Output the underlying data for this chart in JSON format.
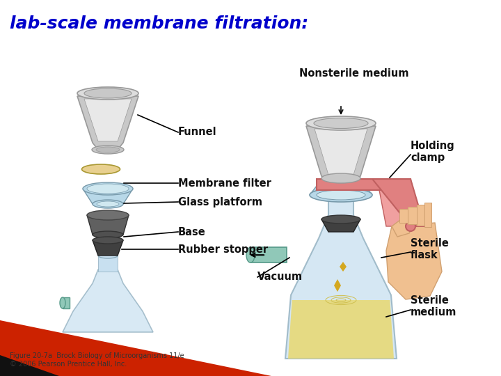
{
  "title": "lab-scale membrane filtration:",
  "title_color": "#0000CC",
  "title_fontsize": 18,
  "bg_color": "#FFFFFF",
  "caption_line1": "Figure 20-7a  Brock Biology of Microorganisms 11/e",
  "caption_line2": "© 2006 Pearson Prentice Hall, Inc.",
  "caption_color": "#333333",
  "caption_fontsize": 7,
  "funnel_gray": "#C8C8C8",
  "funnel_gray_dark": "#A0A0A0",
  "funnel_rim_top": "#DDDDDD",
  "glass_blue": "#B8D8E8",
  "glass_blue_light": "#D0E8F0",
  "base_dark": "#606060",
  "stopper_dark": "#404040",
  "membrane_color": "#E8D090",
  "flask_blue": "#C8E0F0",
  "liquid_yellow": "#E8D870",
  "liquid_ripple": "#D0C050",
  "drop_color": "#D4A820",
  "vacuum_tube_color": "#90C8B8",
  "clamp_color": "#E08080",
  "clamp_dark": "#C06060",
  "hand_color": "#F0C090",
  "hand_dark": "#D0A070",
  "red_stripe": "#CC2200",
  "black_tri": "#111111"
}
